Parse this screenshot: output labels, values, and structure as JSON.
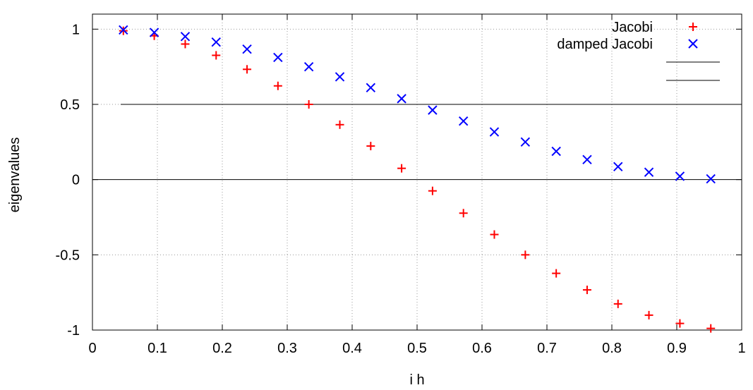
{
  "chart_data": {
    "type": "scatter",
    "xlabel": "i h",
    "ylabel": "eigenvalues",
    "xlim": [
      0,
      1
    ],
    "ylim": [
      -1,
      1.1
    ],
    "x_ticks": [
      "0",
      "0.1",
      "0.2",
      "0.3",
      "0.4",
      "0.5",
      "0.6",
      "0.7",
      "0.8",
      "0.9",
      "1"
    ],
    "y_ticks": [
      "-1",
      "-0.5",
      "0",
      "0.5",
      "1"
    ],
    "grid": true,
    "legend_position": "top-right",
    "series": [
      {
        "name": "Jacobi",
        "marker": "plus",
        "color": "#ff0000",
        "x": [
          0.0476,
          0.0952,
          0.1429,
          0.1905,
          0.2381,
          0.2857,
          0.3333,
          0.381,
          0.4286,
          0.4762,
          0.5238,
          0.5714,
          0.619,
          0.6667,
          0.7143,
          0.7619,
          0.8095,
          0.8571,
          0.9048,
          0.9524
        ],
        "y": [
          0.989,
          0.956,
          0.901,
          0.826,
          0.733,
          0.623,
          0.5,
          0.365,
          0.223,
          0.075,
          -0.075,
          -0.223,
          -0.365,
          -0.5,
          -0.623,
          -0.733,
          -0.826,
          -0.901,
          -0.956,
          -0.989
        ]
      },
      {
        "name": "damped Jacobi",
        "marker": "cross",
        "color": "#0000ff",
        "x": [
          0.0476,
          0.0952,
          0.1429,
          0.1905,
          0.2381,
          0.2857,
          0.3333,
          0.381,
          0.4286,
          0.4762,
          0.5238,
          0.5714,
          0.619,
          0.6667,
          0.7143,
          0.7619,
          0.8095,
          0.8571,
          0.9048,
          0.9524
        ],
        "y": [
          0.995,
          0.978,
          0.951,
          0.914,
          0.867,
          0.812,
          0.75,
          0.683,
          0.611,
          0.538,
          0.462,
          0.389,
          0.317,
          0.25,
          0.188,
          0.133,
          0.086,
          0.049,
          0.022,
          0.005
        ]
      }
    ]
  }
}
